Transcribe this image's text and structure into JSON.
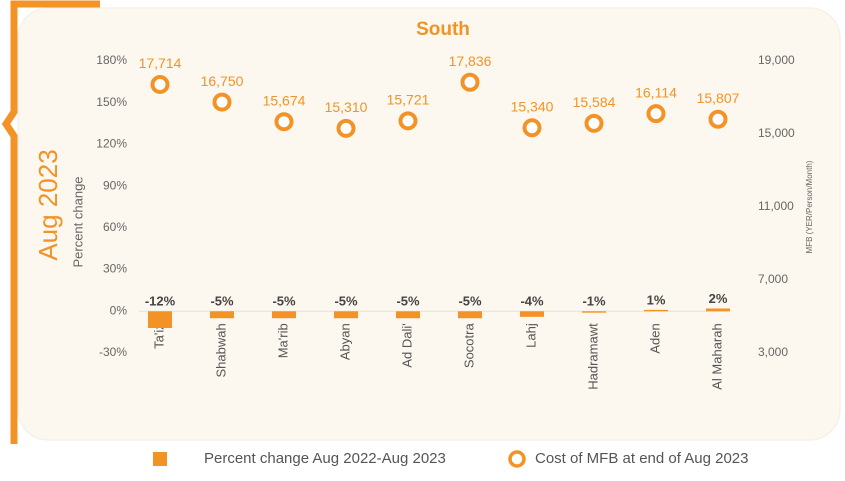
{
  "chart_data": {
    "type": "bar",
    "title": "South",
    "period_label": "Aug 2023",
    "ylabel": "Percent change",
    "y2label": "MFB (YER/Person/Month)",
    "categories": [
      "Ta'iz",
      "Shabwah",
      "Ma'rib",
      "Abyan",
      "Ad Dali'",
      "Socotra",
      "Lahj",
      "Hadramawt",
      "Aden",
      "Al Maharah"
    ],
    "series": [
      {
        "name": "Percent change Aug 2022-Aug 2023",
        "type": "bar",
        "color": "#f39325",
        "values": [
          -12,
          -5,
          -5,
          -5,
          -5,
          -5,
          -4,
          -1,
          1,
          2
        ],
        "value_labels": [
          "-12%",
          "-5%",
          "-5%",
          "-5%",
          "-5%",
          "-5%",
          "-4%",
          "-1%",
          "1%",
          "2%"
        ]
      },
      {
        "name": "Cost of MFB at end of Aug 2023",
        "type": "scatter",
        "axis": "y2",
        "color": "#f39325",
        "values": [
          17714,
          16750,
          15674,
          15310,
          15721,
          17836,
          15340,
          15584,
          16114,
          15807
        ],
        "value_labels": [
          "17,714",
          "16,750",
          "15,674",
          "15,310",
          "15,721",
          "17,836",
          "15,340",
          "15,584",
          "16,114",
          "15,807"
        ]
      }
    ],
    "ylim": [
      -30,
      180
    ],
    "yticks": [
      {
        "value": -30,
        "label": "-30%"
      },
      {
        "value": 0,
        "label": "0%"
      },
      {
        "value": 30,
        "label": "30%"
      },
      {
        "value": 60,
        "label": "60%"
      },
      {
        "value": 90,
        "label": "90%"
      },
      {
        "value": 120,
        "label": "120%"
      },
      {
        "value": 150,
        "label": "150%"
      },
      {
        "value": 180,
        "label": "180%"
      }
    ],
    "y2lim": [
      3000,
      19000
    ],
    "y2ticks": [
      {
        "value": 3000,
        "label": "3,000"
      },
      {
        "value": 7000,
        "label": "7,000"
      },
      {
        "value": 11000,
        "label": "11,000"
      },
      {
        "value": 15000,
        "label": "15,000"
      },
      {
        "value": 19000,
        "label": "19,000"
      }
    ]
  }
}
